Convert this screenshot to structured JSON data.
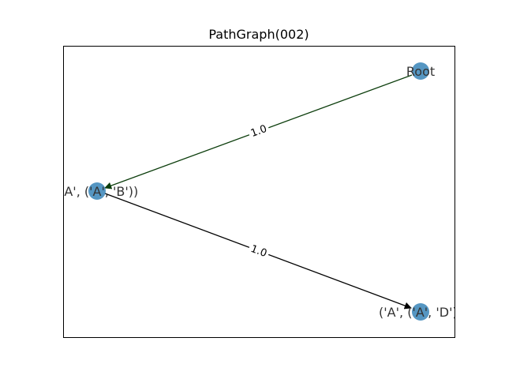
{
  "title": "PathGraph(002)",
  "nodes": {
    "root": {
      "label": "Root"
    },
    "ab": {
      "label": "('A', ('A', 'B'))"
    },
    "ad": {
      "label": "('A', ('A', 'D'))"
    }
  },
  "edges": [
    {
      "from": "Root",
      "to": "('A', ('A', 'B'))",
      "label": "1.0",
      "color": "#0b3d0b"
    },
    {
      "from": "('A', ('A', 'B'))",
      "to": "('A', ('A', 'D'))",
      "label": "1.0",
      "color": "#000000"
    }
  ],
  "colors": {
    "node_fill": "#2f7fb5",
    "node_label": "#333333",
    "frame": "#000000"
  }
}
